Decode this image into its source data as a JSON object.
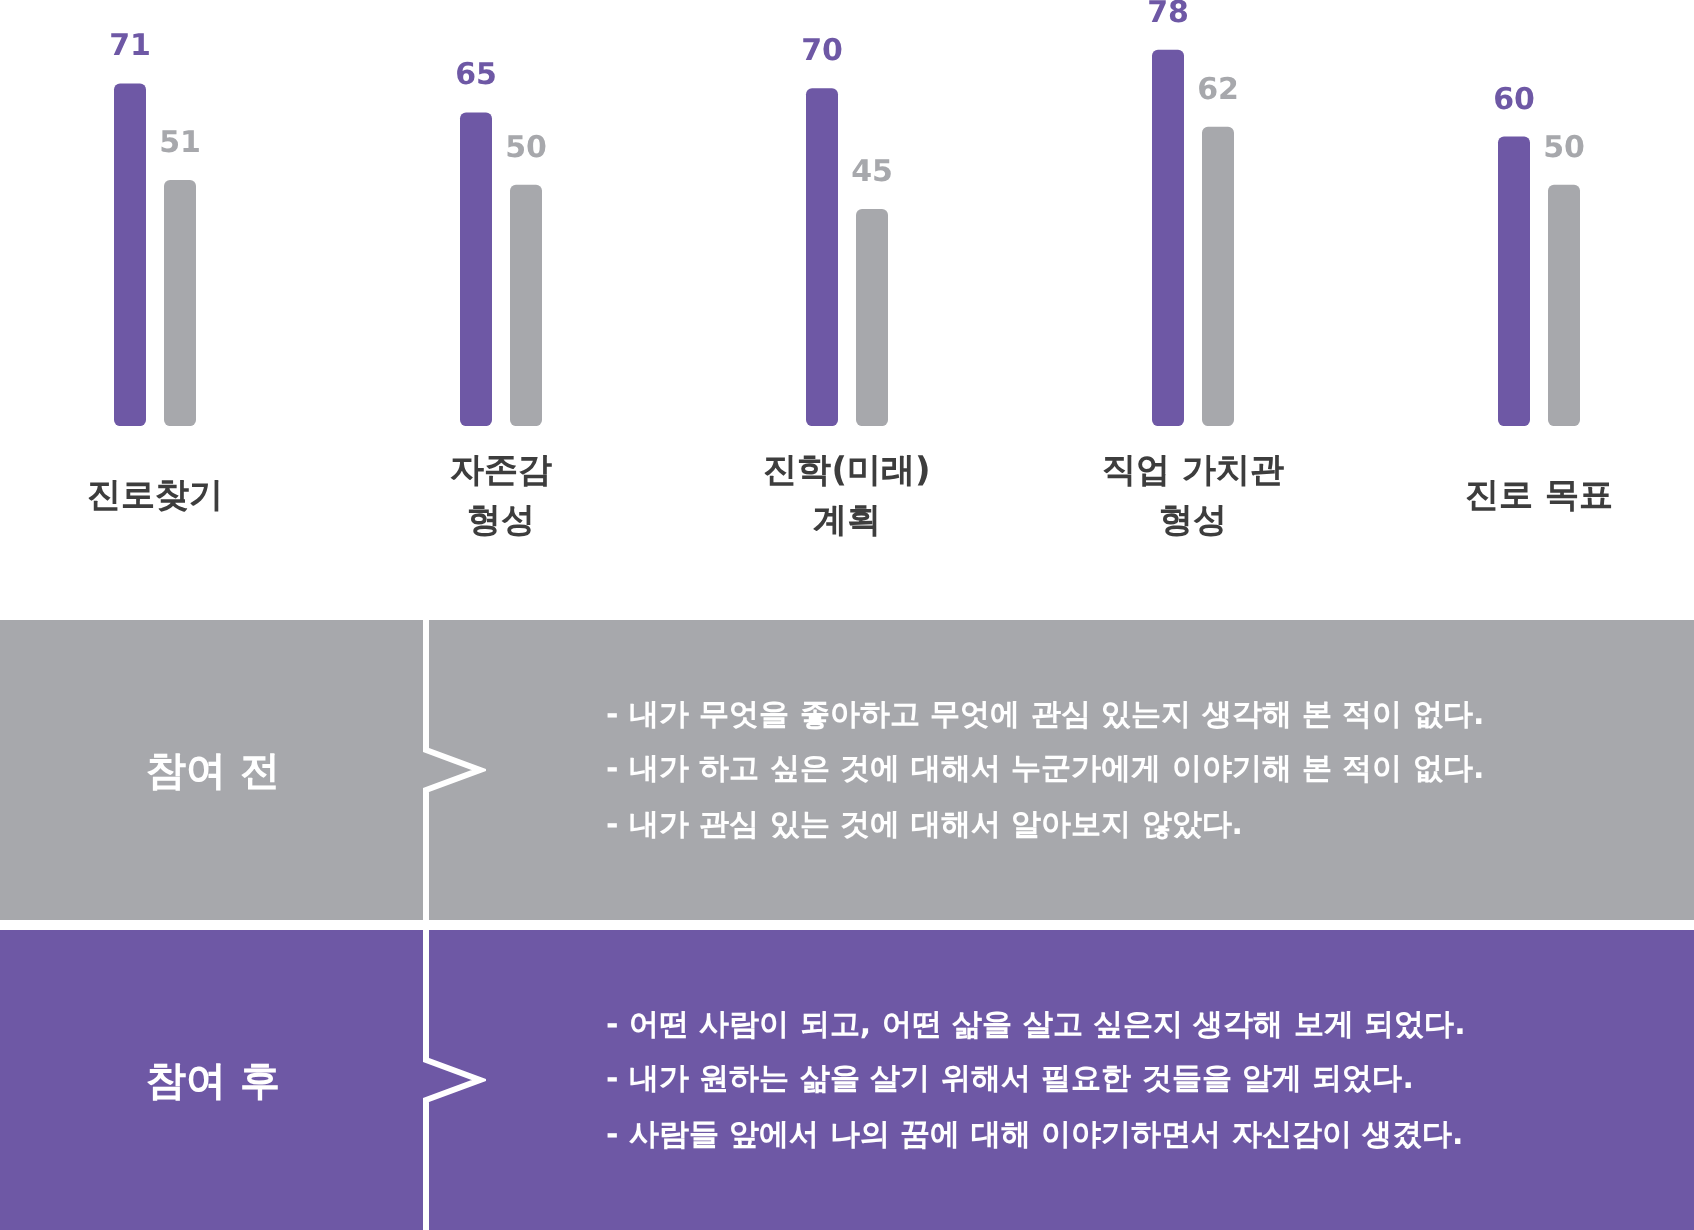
{
  "chart_data": {
    "type": "bar",
    "categories": [
      "진로찾기",
      "자존감\n형성",
      "진학(미래)\n계획",
      "직업 가치관\n형성",
      "진로 목표"
    ],
    "series": [
      {
        "color": "#6e58a5",
        "values": [
          71,
          65,
          70,
          78,
          60
        ]
      },
      {
        "color": "#a7a8ac",
        "values": [
          51,
          50,
          45,
          62,
          50
        ]
      }
    ],
    "data_labels": true,
    "annotations": [
      "참여 전",
      "- 내가 무엇을 좋아하고 무엇에 관심 있는지 생각해 본 적이 없다.",
      "- 내가 하고 싶은 것에 대해서 누군가에게 이야기해 본 적이 없다.",
      "- 내가 관심 있는 것에 대해서 알아보지 않았다.",
      "참여 후",
      "- 어떤 사람이 되고, 어떤 삶을 살고 싶은지 생각해 보게 되었다.",
      "- 내가 원하는 삶을 살기 위해서 필요한 것들을 알게 되었다.",
      "- 사람들 앞에서 나의 꿈에 대해 이야기하면서 자신감이 생겼다."
    ]
  }
}
